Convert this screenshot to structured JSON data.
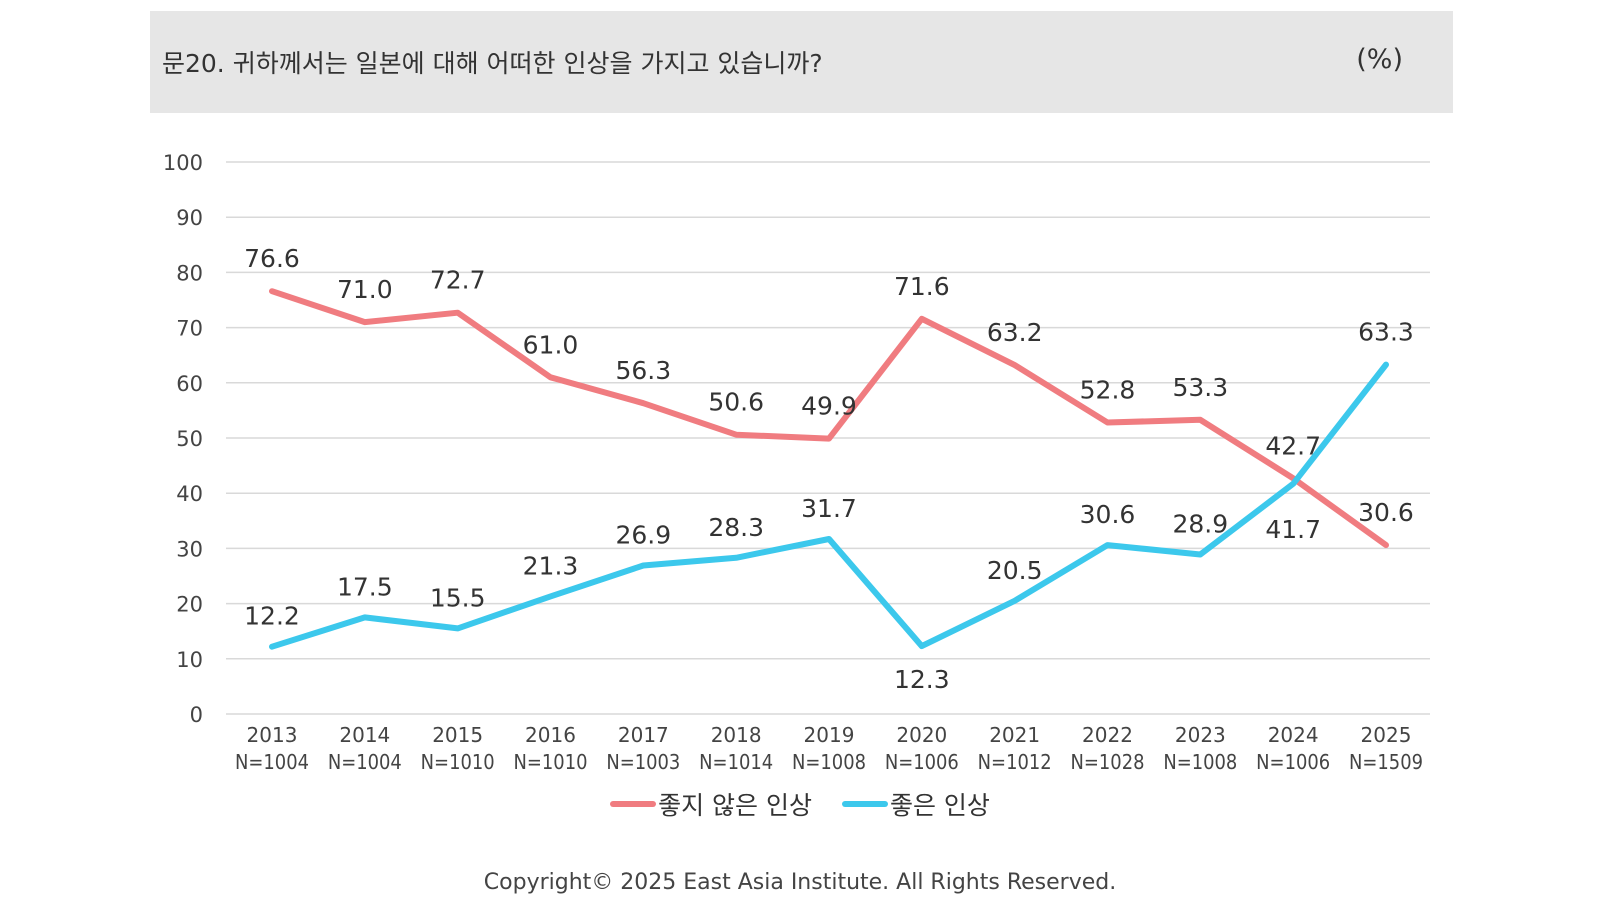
{
  "header": {
    "question": "문20. 귀하께서는 일본에 대해 어떠한 인상을 가지고 있습니까?",
    "unit": "(%)"
  },
  "footer": {
    "copyright": "Copyright© 2025 East Asia Institute. All Rights Reserved."
  },
  "colors": {
    "unfavorable": "#f07c80",
    "favorable": "#3cc8ec",
    "grid": "#d9d9d9",
    "header_bg": "#e6e6e6"
  },
  "chart_data": {
    "type": "line",
    "title": "",
    "xlabel": "",
    "ylabel": "",
    "ylim": [
      0,
      100
    ],
    "yticks": [
      0,
      10,
      20,
      30,
      40,
      50,
      60,
      70,
      80,
      90,
      100
    ],
    "grid": true,
    "legend_position": "bottom",
    "categories": [
      "2013",
      "2014",
      "2015",
      "2016",
      "2017",
      "2018",
      "2019",
      "2020",
      "2021",
      "2022",
      "2023",
      "2024",
      "2025"
    ],
    "sample_sizes": [
      "N=1004",
      "N=1004",
      "N=1010",
      "N=1010",
      "N=1003",
      "N=1014",
      "N=1008",
      "N=1006",
      "N=1012",
      "N=1028",
      "N=1008",
      "N=1006",
      "N=1509"
    ],
    "series": [
      {
        "name": "좋지 않은 인상",
        "color": "#f07c80",
        "values": [
          76.6,
          71.0,
          72.7,
          61.0,
          56.3,
          50.6,
          49.9,
          71.6,
          63.2,
          52.8,
          53.3,
          42.7,
          30.6
        ],
        "labels": [
          "76.6",
          "71.0",
          "72.7",
          "61.0",
          "56.3",
          "50.6",
          "49.9",
          "71.6",
          "63.2",
          "52.8",
          "53.3",
          "42.7",
          "30.6"
        ]
      },
      {
        "name": "좋은 인상",
        "color": "#3cc8ec",
        "values": [
          12.2,
          17.5,
          15.5,
          21.3,
          26.9,
          28.3,
          31.7,
          12.3,
          20.5,
          30.6,
          28.9,
          41.7,
          63.3
        ],
        "labels": [
          "12.2",
          "17.5",
          "15.5",
          "21.3",
          "26.9",
          "28.3",
          "31.7",
          "12.3",
          "20.5",
          "30.6",
          "28.9",
          "41.7",
          "63.3"
        ]
      }
    ]
  }
}
